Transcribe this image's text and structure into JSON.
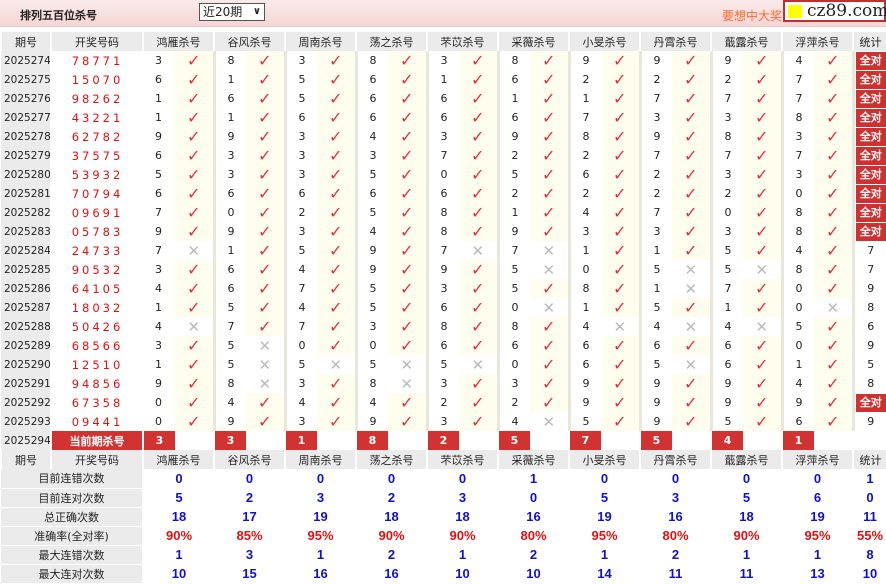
{
  "header": {
    "title": "排列五百位杀号",
    "period_select": "近20期",
    "promo": "要想中大奖",
    "ad": "cz89.com"
  },
  "columns": [
    "期号",
    "开奖号码",
    "鸿雁杀号",
    "谷风杀号",
    "周南杀号",
    "荡之杀号",
    "芣苡杀号",
    "采薇杀号",
    "小旻杀号",
    "丹霄杀号",
    "蕺露杀号",
    "浮萍杀号",
    "统计"
  ],
  "rows": [
    {
      "issue": "2025274",
      "code": "78771",
      "kills": [
        3,
        8,
        3,
        8,
        3,
        8,
        9,
        9,
        9,
        4
      ],
      "hits": [
        1,
        1,
        1,
        1,
        1,
        1,
        1,
        1,
        1,
        1
      ],
      "stat": "全对"
    },
    {
      "issue": "2025275",
      "code": "15070",
      "kills": [
        6,
        1,
        5,
        6,
        1,
        6,
        2,
        2,
        2,
        7
      ],
      "hits": [
        1,
        1,
        1,
        1,
        1,
        1,
        1,
        1,
        1,
        1
      ],
      "stat": "全对"
    },
    {
      "issue": "2025276",
      "code": "98262",
      "kills": [
        1,
        6,
        5,
        6,
        6,
        1,
        1,
        7,
        7,
        7
      ],
      "hits": [
        1,
        1,
        1,
        1,
        1,
        1,
        1,
        1,
        1,
        1
      ],
      "stat": "全对"
    },
    {
      "issue": "2025277",
      "code": "43221",
      "kills": [
        1,
        1,
        6,
        6,
        6,
        6,
        7,
        3,
        3,
        8
      ],
      "hits": [
        1,
        1,
        1,
        1,
        1,
        1,
        1,
        1,
        1,
        1
      ],
      "stat": "全对"
    },
    {
      "issue": "2025278",
      "code": "62782",
      "kills": [
        9,
        9,
        3,
        4,
        3,
        9,
        8,
        9,
        8,
        3
      ],
      "hits": [
        1,
        1,
        1,
        1,
        1,
        1,
        1,
        1,
        1,
        1
      ],
      "stat": "全对"
    },
    {
      "issue": "2025279",
      "code": "37575",
      "kills": [
        6,
        3,
        3,
        3,
        7,
        2,
        2,
        7,
        7,
        7
      ],
      "hits": [
        1,
        1,
        1,
        1,
        1,
        1,
        1,
        1,
        1,
        1
      ],
      "stat": "全对"
    },
    {
      "issue": "2025280",
      "code": "53932",
      "kills": [
        5,
        3,
        3,
        5,
        0,
        5,
        6,
        2,
        3,
        3
      ],
      "hits": [
        1,
        1,
        1,
        1,
        1,
        1,
        1,
        1,
        1,
        1
      ],
      "stat": "全对"
    },
    {
      "issue": "2025281",
      "code": "70794",
      "kills": [
        6,
        6,
        6,
        6,
        6,
        2,
        2,
        2,
        2,
        0
      ],
      "hits": [
        1,
        1,
        1,
        1,
        1,
        1,
        1,
        1,
        1,
        1
      ],
      "stat": "全对"
    },
    {
      "issue": "2025282",
      "code": "09691",
      "kills": [
        7,
        0,
        2,
        5,
        8,
        1,
        4,
        7,
        0,
        8
      ],
      "hits": [
        1,
        1,
        1,
        1,
        1,
        1,
        1,
        1,
        1,
        1
      ],
      "stat": "全对"
    },
    {
      "issue": "2025283",
      "code": "05783",
      "kills": [
        9,
        9,
        3,
        4,
        8,
        9,
        3,
        3,
        3,
        8
      ],
      "hits": [
        1,
        1,
        1,
        1,
        1,
        1,
        1,
        1,
        1,
        1
      ],
      "stat": "全对"
    },
    {
      "issue": "2025284",
      "code": "24733",
      "kills": [
        7,
        1,
        5,
        9,
        7,
        7,
        1,
        1,
        5,
        4
      ],
      "hits": [
        0,
        1,
        1,
        1,
        0,
        0,
        1,
        1,
        1,
        1
      ],
      "stat": "7"
    },
    {
      "issue": "2025285",
      "code": "90532",
      "kills": [
        3,
        6,
        4,
        9,
        9,
        5,
        0,
        5,
        5,
        8
      ],
      "hits": [
        1,
        1,
        1,
        1,
        1,
        0,
        1,
        0,
        0,
        1
      ],
      "stat": "7"
    },
    {
      "issue": "2025286",
      "code": "64105",
      "kills": [
        4,
        6,
        7,
        5,
        3,
        5,
        8,
        1,
        7,
        0
      ],
      "hits": [
        1,
        1,
        1,
        1,
        1,
        1,
        1,
        0,
        1,
        1
      ],
      "stat": "9"
    },
    {
      "issue": "2025287",
      "code": "18032",
      "kills": [
        1,
        5,
        4,
        5,
        6,
        0,
        1,
        5,
        1,
        0
      ],
      "hits": [
        1,
        1,
        1,
        1,
        1,
        0,
        1,
        1,
        1,
        0
      ],
      "stat": "8"
    },
    {
      "issue": "2025288",
      "code": "50426",
      "kills": [
        4,
        7,
        7,
        3,
        8,
        8,
        4,
        4,
        4,
        5
      ],
      "hits": [
        0,
        1,
        1,
        1,
        1,
        1,
        0,
        0,
        0,
        1
      ],
      "stat": "6"
    },
    {
      "issue": "2025289",
      "code": "68566",
      "kills": [
        3,
        5,
        0,
        0,
        6,
        6,
        6,
        6,
        6,
        0
      ],
      "hits": [
        1,
        0,
        1,
        1,
        1,
        1,
        1,
        1,
        1,
        1
      ],
      "stat": "9"
    },
    {
      "issue": "2025290",
      "code": "12510",
      "kills": [
        1,
        5,
        5,
        5,
        5,
        0,
        6,
        5,
        6,
        1
      ],
      "hits": [
        1,
        0,
        0,
        0,
        0,
        1,
        1,
        0,
        1,
        1
      ],
      "stat": "5"
    },
    {
      "issue": "2025291",
      "code": "94856",
      "kills": [
        9,
        8,
        3,
        8,
        3,
        3,
        9,
        9,
        9,
        4
      ],
      "hits": [
        1,
        0,
        1,
        0,
        1,
        1,
        1,
        1,
        1,
        1
      ],
      "stat": "8"
    },
    {
      "issue": "2025292",
      "code": "67358",
      "kills": [
        0,
        4,
        4,
        4,
        2,
        2,
        9,
        9,
        9,
        9
      ],
      "hits": [
        1,
        1,
        1,
        1,
        1,
        1,
        1,
        1,
        1,
        1
      ],
      "stat": "全对"
    },
    {
      "issue": "2025293",
      "code": "09441",
      "kills": [
        0,
        9,
        3,
        9,
        3,
        4,
        5,
        9,
        5,
        6
      ],
      "hits": [
        1,
        1,
        1,
        1,
        1,
        0,
        1,
        1,
        1,
        1
      ],
      "stat": "9"
    }
  ],
  "current": {
    "issue": "2025294",
    "label": "当前期杀号",
    "kills": [
      3,
      3,
      1,
      8,
      2,
      5,
      7,
      5,
      4,
      1
    ]
  },
  "stats": [
    {
      "label": "目前连错次数",
      "values": [
        "0",
        "0",
        "0",
        "0",
        "0",
        "1",
        "0",
        "0",
        "0",
        "0",
        "1"
      ]
    },
    {
      "label": "目前连对次数",
      "values": [
        "5",
        "2",
        "3",
        "2",
        "3",
        "0",
        "5",
        "3",
        "5",
        "6",
        "0"
      ]
    },
    {
      "label": "总正确次数",
      "values": [
        "18",
        "17",
        "19",
        "18",
        "18",
        "16",
        "19",
        "16",
        "18",
        "19",
        "11"
      ]
    },
    {
      "label": "准确率(全对率)",
      "values": [
        "90%",
        "85%",
        "95%",
        "90%",
        "90%",
        "80%",
        "95%",
        "80%",
        "90%",
        "95%",
        "55%"
      ],
      "highlight": "#e01010"
    },
    {
      "label": "最大连错次数",
      "values": [
        "1",
        "3",
        "1",
        "2",
        "1",
        "2",
        "1",
        "2",
        "1",
        "1",
        "8"
      ]
    },
    {
      "label": "最大连对次数",
      "values": [
        "10",
        "15",
        "16",
        "16",
        "10",
        "10",
        "14",
        "11",
        "11",
        "13",
        "10"
      ]
    }
  ],
  "icons": {
    "hit": "check-icon",
    "miss": "cross-icon"
  },
  "colors": {
    "accent": "#d13232",
    "stat_blue": "#1010d0",
    "code_red": "#e01010"
  }
}
